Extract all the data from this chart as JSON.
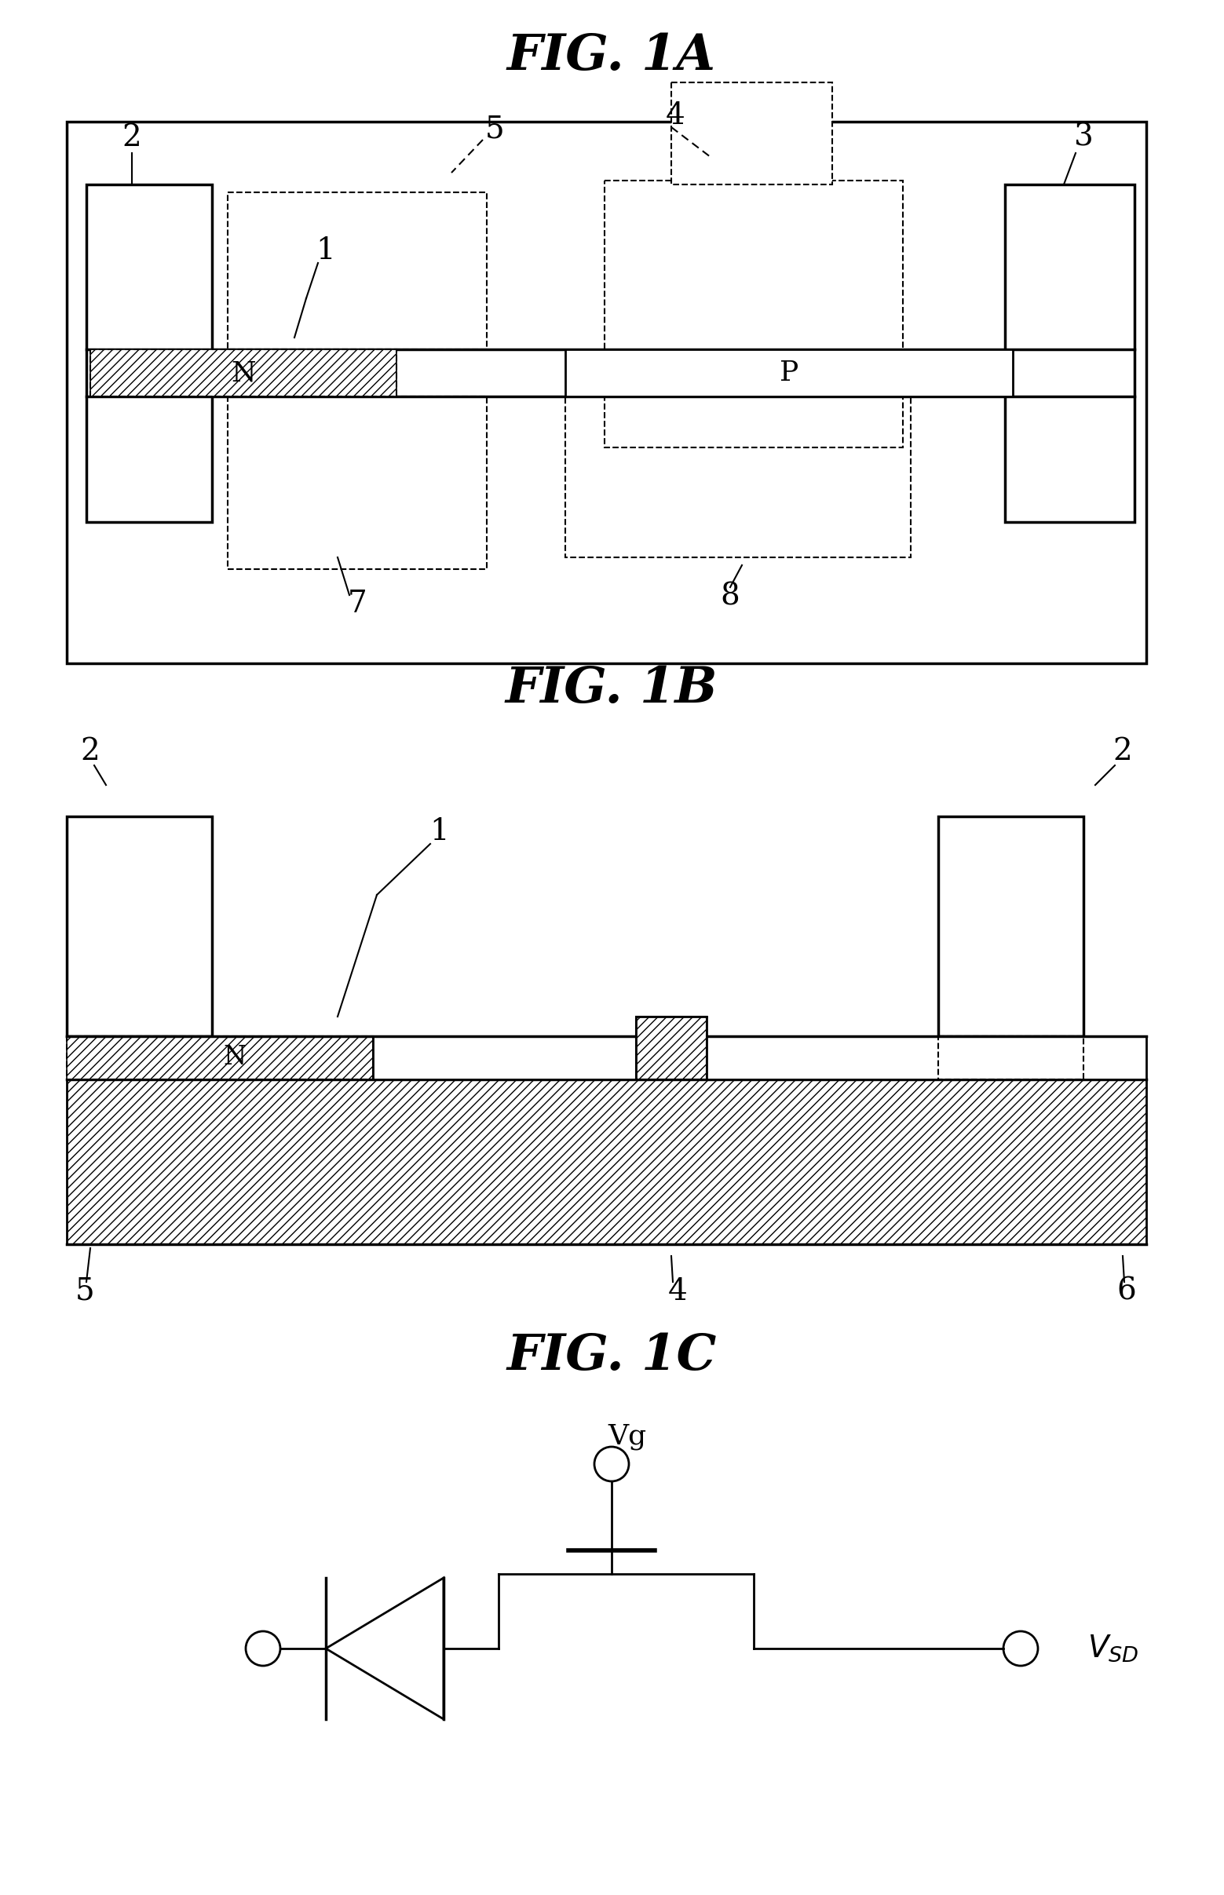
{
  "fig_title_1a": "FIG. 1A",
  "fig_title_1b": "FIG. 1B",
  "fig_title_1c": "FIG. 1C",
  "bg_color": "#ffffff"
}
